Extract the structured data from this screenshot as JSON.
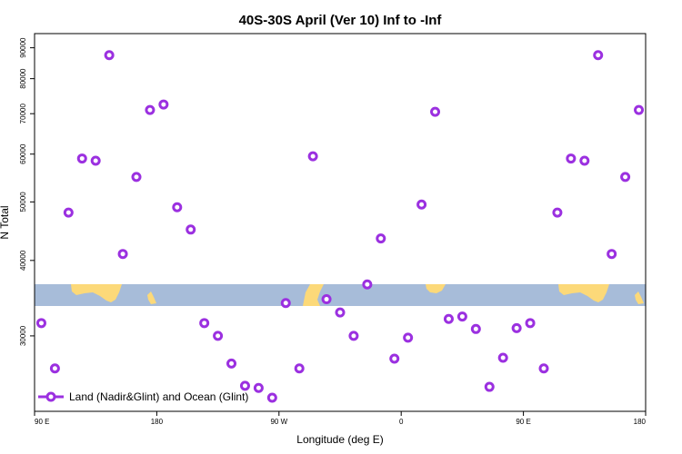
{
  "chart_data": {
    "type": "scatter",
    "title": "40S-30S April (Ver 10)   Inf to -Inf",
    "xlabel": "Longitude (deg E)",
    "ylabel": "N Total",
    "y_scale": "log",
    "x_axis": {
      "range_deg_east_continuous": [
        90,
        540
      ],
      "ticks": [
        {
          "value": 90,
          "label": "90 E"
        },
        {
          "value": 180,
          "label": "180"
        },
        {
          "value": 270,
          "label": "90 W"
        },
        {
          "value": 360,
          "label": "0"
        },
        {
          "value": 450,
          "label": "90 E"
        },
        {
          "value": 540,
          "label": "180"
        }
      ]
    },
    "y_axis": {
      "ylim": [
        22500,
        95000
      ],
      "ticks": [
        30000,
        40000,
        50000,
        60000,
        70000,
        80000,
        90000
      ]
    },
    "legend": {
      "label": "Land (Nadir&Glint) and Ocean (Glint)",
      "position": "bottom-left"
    },
    "series": [
      {
        "name": "Land (Nadir&Glint) and Ocean (Glint)",
        "color": "#9b30e0",
        "points": [
          [
            95,
            31500
          ],
          [
            105,
            26500
          ],
          [
            115,
            48000
          ],
          [
            125,
            59000
          ],
          [
            135,
            58500
          ],
          [
            145,
            87500
          ],
          [
            155,
            41000
          ],
          [
            165,
            55000
          ],
          [
            175,
            71000
          ],
          [
            185,
            72500
          ],
          [
            195,
            49000
          ],
          [
            205,
            45000
          ],
          [
            215,
            31500
          ],
          [
            225,
            30000
          ],
          [
            235,
            27000
          ],
          [
            245,
            24800
          ],
          [
            255,
            24600
          ],
          [
            265,
            23700
          ],
          [
            275,
            34000
          ],
          [
            285,
            26500
          ],
          [
            295,
            59500
          ],
          [
            305,
            34500
          ],
          [
            315,
            32800
          ],
          [
            325,
            30000
          ],
          [
            335,
            36500
          ],
          [
            345,
            43500
          ],
          [
            355,
            27500
          ],
          [
            365,
            29800
          ],
          [
            375,
            49500
          ],
          [
            385,
            70500
          ],
          [
            395,
            32000
          ],
          [
            405,
            32300
          ],
          [
            415,
            30800
          ],
          [
            425,
            24700
          ],
          [
            435,
            27600
          ],
          [
            445,
            30900
          ],
          [
            455,
            31500
          ],
          [
            465,
            26500
          ],
          [
            475,
            48000
          ],
          [
            485,
            59000
          ],
          [
            495,
            58500
          ],
          [
            505,
            87500
          ],
          [
            515,
            41000
          ],
          [
            525,
            55000
          ],
          [
            535,
            71000
          ]
        ]
      }
    ],
    "background_map_colors": {
      "ocean": "#a7bcd9",
      "land": "#fcd979"
    }
  }
}
